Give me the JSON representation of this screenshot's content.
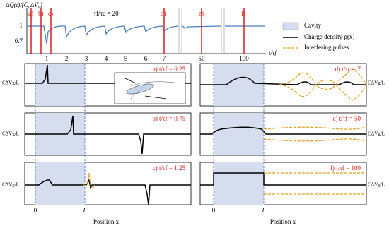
{
  "top_plot": {
    "y_label": "ΔQ(t)/(C₀ΔV₀)",
    "x_label": "t/τf",
    "ratio": "τf/τc = 20",
    "yticks": [
      "1",
      "0.7"
    ],
    "xticks": [
      "1",
      "2",
      "3",
      "4",
      "5",
      "6",
      "7",
      "50",
      "100"
    ],
    "markers": [
      "a)",
      "b)",
      "c)",
      "d)",
      "e)",
      "f)"
    ]
  },
  "legend": {
    "items": [
      "Cavity",
      "Charge density ρ(x)",
      "Interfering pulses"
    ]
  },
  "panels": [
    {
      "label": "a) t/τf = 0.25"
    },
    {
      "label": "b) t/τf = 0.75"
    },
    {
      "label": "c) t/τf = 1.25"
    },
    {
      "label": "d) t/τc = 7"
    },
    {
      "label": "e) t/τf = 50"
    },
    {
      "label": "f) t/τf = 100"
    }
  ],
  "panel_y_label": "CΔVg/L",
  "position_axis": {
    "ticks": [
      "0",
      "L"
    ],
    "label": "Position x"
  }
}
